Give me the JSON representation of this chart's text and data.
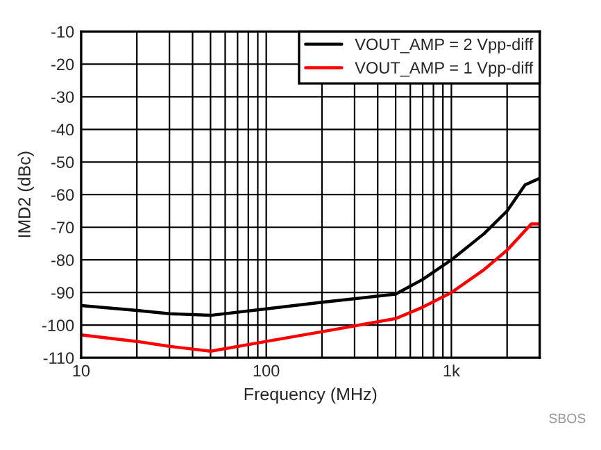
{
  "chart_data": {
    "type": "line",
    "xlabel": "Frequency (MHz)",
    "ylabel": "IMD2 (dBc)",
    "log": "x",
    "grid": true,
    "legend": "top right",
    "marker": "none",
    "line_style": "solid",
    "xlim": [
      10,
      3000
    ],
    "ylim": [
      -110,
      -10
    ],
    "xticks": [
      10,
      {
        "value": 20,
        "label": null
      },
      {
        "value": 30,
        "label": null
      },
      {
        "value": 40,
        "label": null
      },
      {
        "value": 50,
        "label": null
      },
      {
        "value": 60,
        "label": null
      },
      {
        "value": 70,
        "label": null
      },
      {
        "value": 80,
        "label": null
      },
      {
        "value": 90,
        "label": null
      },
      100,
      {
        "value": 200,
        "label": null
      },
      {
        "value": 300,
        "label": null
      },
      {
        "value": 400,
        "label": null
      },
      {
        "value": 500,
        "label": null
      },
      {
        "value": 600,
        "label": null
      },
      {
        "value": 700,
        "label": null
      },
      {
        "value": 800,
        "label": null
      },
      {
        "value": 900,
        "label": null
      },
      {
        "value": 1000,
        "label": "1k"
      },
      {
        "value": 2000,
        "label": null
      },
      {
        "value": 3000,
        "label": null
      }
    ],
    "yticks": [
      -110,
      -100,
      -90,
      -80,
      -70,
      -60,
      -50,
      -40,
      -30,
      -20,
      -10
    ],
    "series": [
      {
        "name": "VOUT_AMP = 2 Vpp-diff",
        "color": "#000000",
        "x": [
          10,
          20,
          30,
          50,
          100,
          200,
          500,
          700,
          1000,
          1500,
          2000,
          2500,
          3000
        ],
        "values": [
          -94,
          -95.5,
          -96.5,
          -97,
          -95,
          -93,
          -90.5,
          -86,
          -80,
          -72,
          -65,
          -57,
          -55
        ]
      },
      {
        "name": "VOUT_AMP = 1 Vpp-diff",
        "color": "#ff0000",
        "x": [
          10,
          20,
          30,
          50,
          100,
          200,
          500,
          700,
          1000,
          1500,
          2000,
          2700,
          3000
        ],
        "values": [
          -103,
          -105,
          -106.5,
          -108,
          -105,
          -102,
          -98,
          -94.5,
          -90,
          -83,
          -77,
          -69,
          -69
        ]
      }
    ],
    "annotations": [
      "SBOS"
    ]
  }
}
